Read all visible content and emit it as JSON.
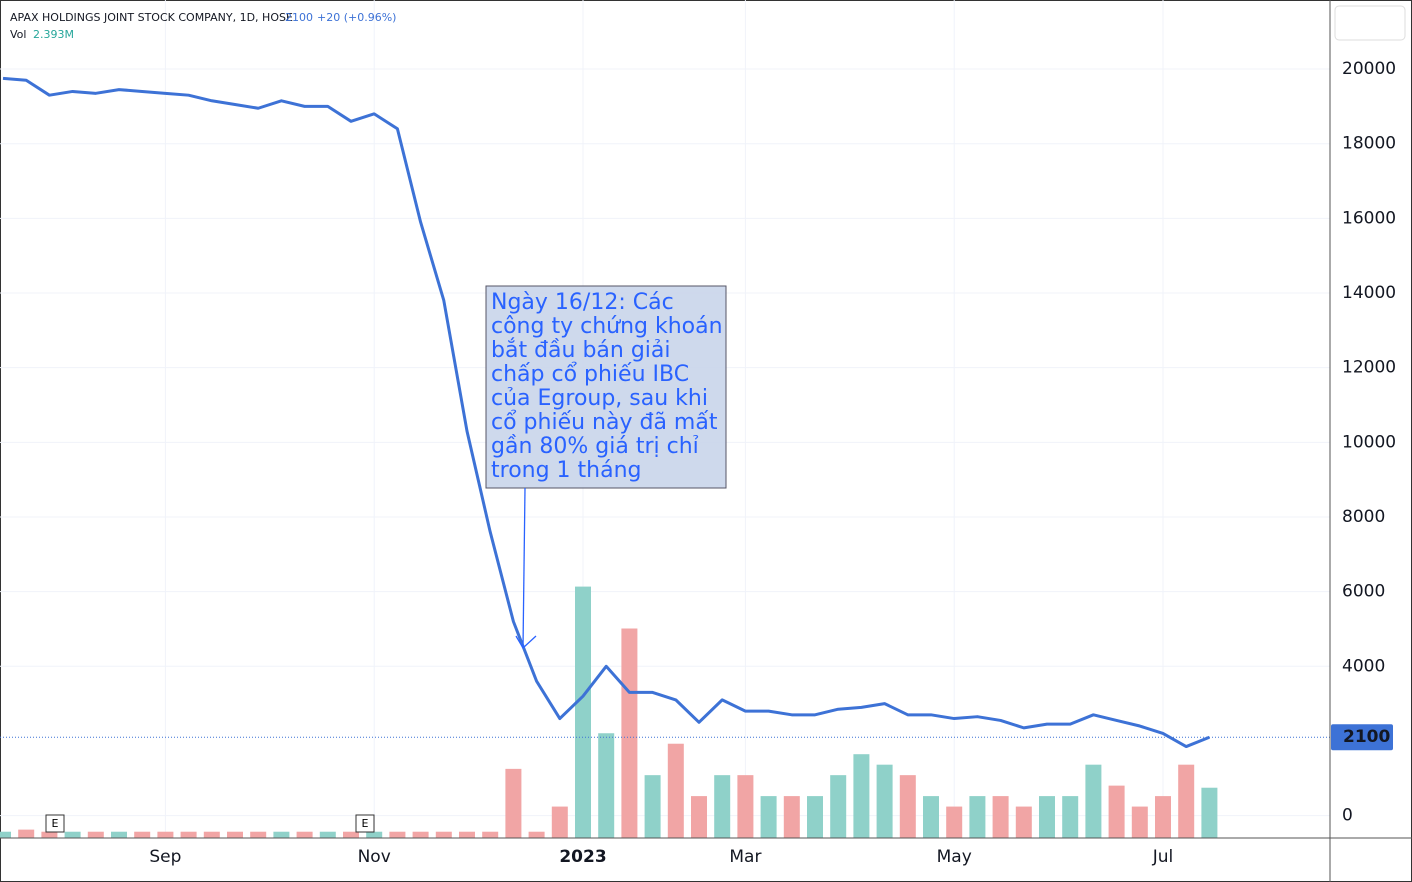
{
  "chart_data": {
    "type": "line",
    "header": {
      "title": "APAX HOLDINGS JOINT STOCK COMPANY, 1D, HOSE",
      "price": "2100",
      "change": "+20 (+0.96%)",
      "vol_label": "Vol",
      "vol_value": "2.393M"
    },
    "last_price": 2100,
    "categories": [
      null,
      null,
      null,
      null,
      null,
      null,
      null,
      "Sep",
      null,
      null,
      null,
      null,
      null,
      null,
      null,
      null,
      "Nov",
      null,
      null,
      null,
      null,
      null,
      null,
      null,
      null,
      "2023",
      null,
      null,
      null,
      null,
      null,
      null,
      "Mar",
      null,
      null,
      null,
      null,
      null,
      null,
      null,
      null,
      "May",
      null,
      null,
      null,
      null,
      null,
      null,
      null,
      null,
      "Jul",
      null,
      null
    ],
    "series": [
      {
        "name": "Price",
        "color": "#3d72d6",
        "values": [
          19750,
          19700,
          19300,
          19400,
          19350,
          19450,
          19400,
          19350,
          19300,
          19150,
          19050,
          18950,
          19150,
          19000,
          19000,
          18600,
          18800,
          18400,
          15900,
          13800,
          10300,
          7600,
          5200,
          3600,
          2600,
          3200,
          4000,
          3300,
          3300,
          3100,
          2500,
          3100,
          2800,
          2800,
          2700,
          2700,
          2850,
          2900,
          3000,
          2700,
          2700,
          2600,
          2650,
          2550,
          2350,
          2450,
          2450,
          2700,
          2550,
          2400,
          2200,
          1850,
          2100
        ]
      },
      {
        "name": "Vol",
        "type": "bar",
        "axis": "y2",
        "color_up": "#8fd1c9",
        "color_down": "#f1a5a5",
        "values": [
          0.3,
          0.4,
          0.3,
          0.3,
          0.3,
          0.3,
          0.3,
          0.3,
          0.3,
          0.3,
          0.3,
          0.3,
          0.3,
          0.3,
          0.3,
          0.3,
          0.3,
          0.3,
          0.3,
          0.3,
          0.3,
          0.3,
          3.3,
          0.3,
          1.5,
          12,
          5,
          10,
          3,
          4.5,
          2,
          3,
          3,
          2,
          2,
          2,
          3,
          4,
          3.5,
          3,
          2,
          1.5,
          2,
          2,
          1.5,
          2,
          2,
          3.5,
          2.5,
          1.5,
          2,
          3.5,
          2.4
        ]
      }
    ],
    "ylim": [
      -600,
      21850
    ],
    "yticks": [
      0,
      4000,
      6000,
      8000,
      10000,
      12000,
      14000,
      16000,
      18000,
      20000
    ],
    "y2lim": [
      0,
      40
    ],
    "grid": true,
    "annotation": {
      "lines": [
        "Ngày 16/12: Các",
        "công ty chứng khoán",
        "bắt đầu bán giải",
        "chấp cổ phiếu IBC",
        "của Egroup, sau khi",
        "cổ phiếu này đã mất",
        "gần 80% giá trị chỉ",
        "trong 1 tháng"
      ]
    }
  }
}
